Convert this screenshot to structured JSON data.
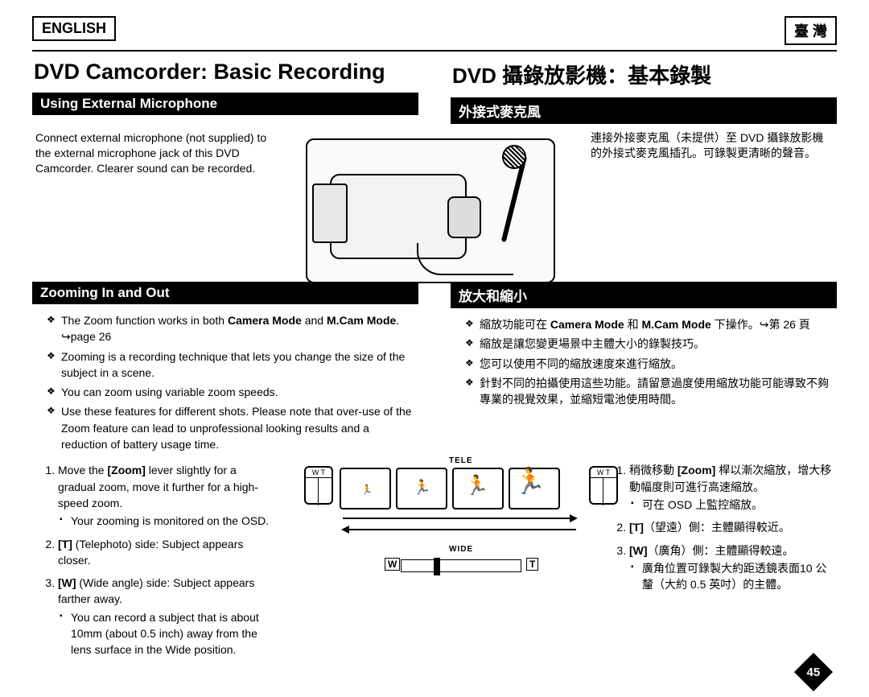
{
  "lang": {
    "english": "ENGLISH",
    "taiwan": "臺 灣"
  },
  "titles": {
    "en": "DVD Camcorder: Basic Recording",
    "cn": "DVD 攝錄放影機：基本錄製"
  },
  "sections": {
    "mic_en": "Using External Microphone",
    "mic_cn": "外接式麥克風",
    "zoom_en": "Zooming In and Out",
    "zoom_cn": "放大和縮小"
  },
  "mic_text": {
    "en": "Connect external microphone (not supplied) to the external microphone jack of this DVD Camcorder. Clearer sound can be recorded.",
    "cn": "連接外接麥克風（未提供）至 DVD 攝錄放影機的外接式麥克風插孔。可錄製更清晰的聲音。"
  },
  "zoom_bullets_en": [
    "The Zoom function works in both <b>Camera Mode</b> and <b>M.Cam Mode</b>. ↪page 26",
    "Zooming is a recording technique that lets you change the size of the subject in a scene.",
    "You can zoom using variable zoom speeds.",
    "Use these features for different shots. Please note that over-use of the Zoom feature can lead to unprofessional looking results and a reduction of battery usage time."
  ],
  "zoom_bullets_cn": [
    "縮放功能可在 <b>Camera Mode</b> 和 <b>M.Cam Mode</b> 下操作。↪第 26 頁",
    "縮放是讓您變更場景中主體大小的錄製技巧。",
    "您可以使用不同的縮放速度來進行縮放。",
    "針對不同的拍攝使用這些功能。請留意過度使用縮放功能可能導致不夠專業的視覺效果，並縮短電池使用時間。"
  ],
  "zoom_steps_en": [
    {
      "text": "Move the <b>[Zoom]</b> lever slightly for a gradual zoom, move it further for a high-speed zoom.",
      "sub": [
        "Your zooming is monitored on the OSD."
      ]
    },
    {
      "text": "<b>[T]</b> (Telephoto) side: Subject appears closer.",
      "sub": []
    },
    {
      "text": "<b>[W]</b> (Wide angle) side: Subject appears farther away.",
      "sub": [
        "You can record a subject that is about 10mm (about 0.5 inch) away from the lens surface in the Wide position."
      ]
    }
  ],
  "zoom_steps_cn": [
    {
      "text": "稍微移動 <b>[Zoom]</b> 桿以漸次縮放，增大移動幅度則可進行高速縮放。",
      "sub": [
        "可在 OSD 上監控縮放。"
      ]
    },
    {
      "text": "<b>[T]</b>（望遠）側：主體顯得較近。",
      "sub": []
    },
    {
      "text": "<b>[W]</b>（廣角）側：主體顯得較遠。",
      "sub": [
        "廣角位置可錄製大約距透鏡表面10 公釐（大約 0.5 英吋）的主體。"
      ]
    }
  ],
  "diagram": {
    "tele": "TELE",
    "wide": "WIDE",
    "w": "W",
    "t": "T",
    "wt": "W T"
  },
  "page_number": "45"
}
